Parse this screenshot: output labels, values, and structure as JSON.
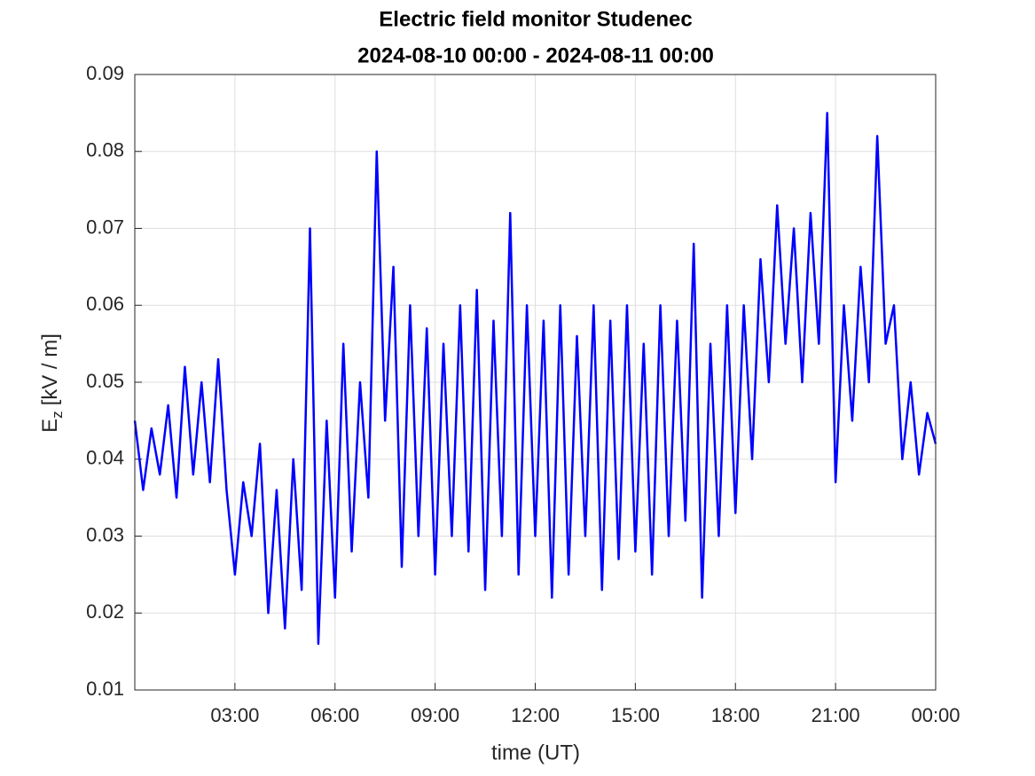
{
  "chart_data": {
    "type": "line",
    "title": "Electric field monitor Studenec",
    "subtitle": "2024-08-10 00:00 - 2024-08-11 00:00",
    "xlabel": "time (UT)",
    "ylabel": "E",
    "ylabel_sub": "z",
    "ylabel_unit": "[kV / m]",
    "x": [
      0,
      0.25,
      0.5,
      0.75,
      1,
      1.25,
      1.5,
      1.75,
      2,
      2.25,
      2.5,
      2.75,
      3,
      3.25,
      3.5,
      3.75,
      4,
      4.25,
      4.5,
      4.75,
      5,
      5.25,
      5.5,
      5.75,
      6,
      6.25,
      6.5,
      6.75,
      7,
      7.25,
      7.5,
      7.75,
      8,
      8.25,
      8.5,
      8.75,
      9,
      9.25,
      9.5,
      9.75,
      10,
      10.25,
      10.5,
      10.75,
      11,
      11.25,
      11.5,
      11.75,
      12,
      12.25,
      12.5,
      12.75,
      13,
      13.25,
      13.5,
      13.75,
      14,
      14.25,
      14.5,
      14.75,
      15,
      15.25,
      15.5,
      15.75,
      16,
      16.25,
      16.5,
      16.75,
      17,
      17.25,
      17.5,
      17.75,
      18,
      18.25,
      18.5,
      18.75,
      19,
      19.25,
      19.5,
      19.75,
      20,
      20.25,
      20.5,
      20.75,
      21,
      21.25,
      21.5,
      21.75,
      22,
      22.25,
      22.5,
      22.75,
      23,
      23.25,
      23.5,
      23.75,
      24
    ],
    "series": [
      {
        "color": "#0000ff",
        "values": [
          0.045,
          0.036,
          0.044,
          0.038,
          0.047,
          0.035,
          0.052,
          0.038,
          0.05,
          0.037,
          0.053,
          0.036,
          0.025,
          0.037,
          0.03,
          0.042,
          0.02,
          0.036,
          0.018,
          0.04,
          0.023,
          0.07,
          0.016,
          0.045,
          0.022,
          0.055,
          0.028,
          0.05,
          0.035,
          0.08,
          0.045,
          0.065,
          0.026,
          0.06,
          0.03,
          0.057,
          0.025,
          0.055,
          0.03,
          0.06,
          0.028,
          0.062,
          0.023,
          0.058,
          0.03,
          0.072,
          0.025,
          0.06,
          0.03,
          0.058,
          0.022,
          0.06,
          0.025,
          0.056,
          0.03,
          0.06,
          0.023,
          0.058,
          0.027,
          0.06,
          0.028,
          0.055,
          0.025,
          0.06,
          0.03,
          0.058,
          0.032,
          0.068,
          0.022,
          0.055,
          0.03,
          0.06,
          0.033,
          0.06,
          0.04,
          0.066,
          0.05,
          0.073,
          0.055,
          0.07,
          0.05,
          0.072,
          0.055,
          0.085,
          0.037,
          0.06,
          0.045,
          0.065,
          0.05,
          0.082,
          0.055,
          0.06,
          0.04,
          0.05,
          0.038,
          0.046,
          0.042
        ]
      }
    ],
    "xlim": [
      0,
      24
    ],
    "xticks": [
      {
        "value": 3,
        "label": "03:00"
      },
      {
        "value": 6,
        "label": "06:00"
      },
      {
        "value": 9,
        "label": "09:00"
      },
      {
        "value": 12,
        "label": "12:00"
      },
      {
        "value": 15,
        "label": "15:00"
      },
      {
        "value": 18,
        "label": "18:00"
      },
      {
        "value": 21,
        "label": "21:00"
      },
      {
        "value": 24,
        "label": "00:00"
      }
    ],
    "ylim": [
      0.01,
      0.09
    ],
    "yticks": [
      0.01,
      0.02,
      0.03,
      0.04,
      0.05,
      0.06,
      0.07,
      0.08,
      0.09
    ],
    "grid": true
  }
}
